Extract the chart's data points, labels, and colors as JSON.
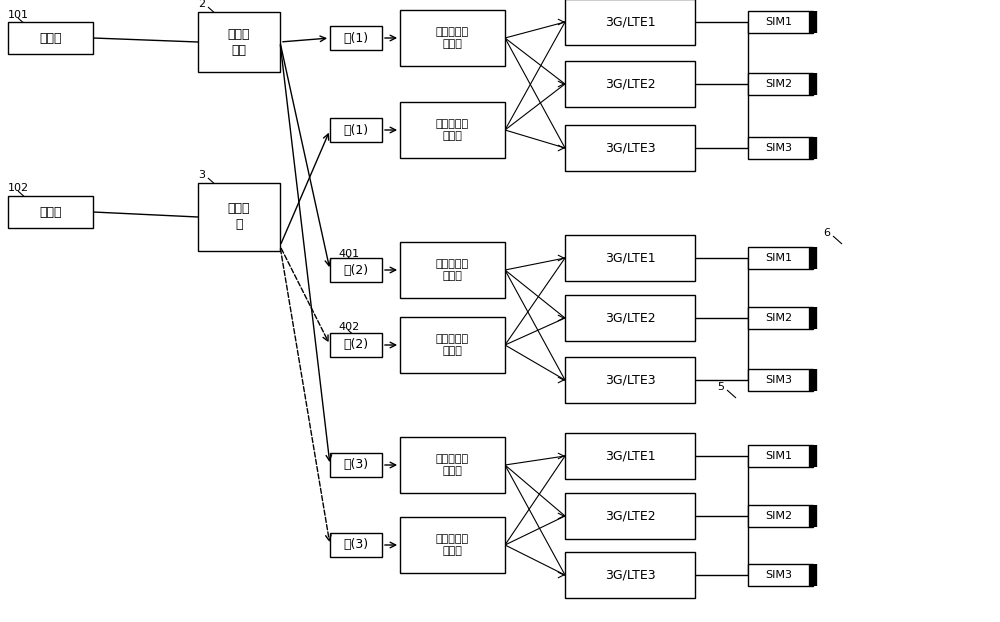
{
  "bg": "#ffffff",
  "lc": "#000000",
  "labels": {
    "main_ant": "主天线",
    "sub_ant": "副天线",
    "ext_split": "外部功\n分器",
    "switch": "切换开\n关",
    "main_sig": "主天线信号\n功分器",
    "sub_sig": "副天线信号\n功分器",
    "m1": "主(1)",
    "s1": "副(1)",
    "m2": "主(2)",
    "s2": "副(2)",
    "m3": "主(3)",
    "s3": "副(3)",
    "lte1": "3G/LTE1",
    "lte2": "3G/LTE2",
    "lte3": "3G/LTE3",
    "sim1": "SIM1",
    "sim2": "SIM2",
    "sim3": "SIM3"
  },
  "ann": {
    "n101": "101",
    "n102": "102",
    "n2": "2",
    "n3": "3",
    "n401": "401",
    "n402": "402",
    "n5": "5",
    "n6": "6"
  }
}
